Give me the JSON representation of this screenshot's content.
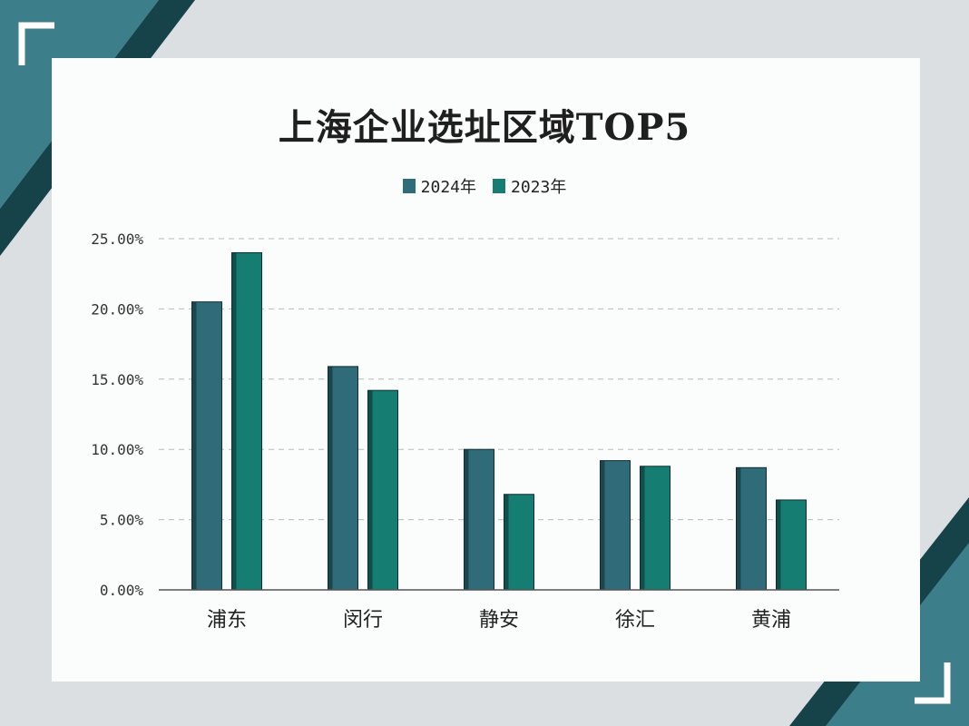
{
  "chart_data": {
    "type": "bar",
    "title": "上海企业选址区域TOP5",
    "categories": [
      "浦东",
      "闵行",
      "静安",
      "徐汇",
      "黄浦"
    ],
    "series": [
      {
        "name": "2024年",
        "values": [
          20.5,
          15.9,
          10.0,
          9.2,
          8.7
        ],
        "color": "#2f6b78"
      },
      {
        "name": "2023年",
        "values": [
          24.0,
          14.2,
          6.8,
          8.8,
          6.4
        ],
        "color": "#157d71"
      }
    ],
    "y_ticks": [
      "0.00%",
      "5.00%",
      "10.00%",
      "15.00%",
      "20.00%",
      "25.00%"
    ],
    "ylim": [
      0,
      25
    ],
    "grid": true,
    "legend_position": "top-center"
  },
  "colors": {
    "frame_teal": "#3c7e8a",
    "frame_dark": "#16424a",
    "background": "#dcdfe1",
    "card": "#fbfcfc"
  }
}
